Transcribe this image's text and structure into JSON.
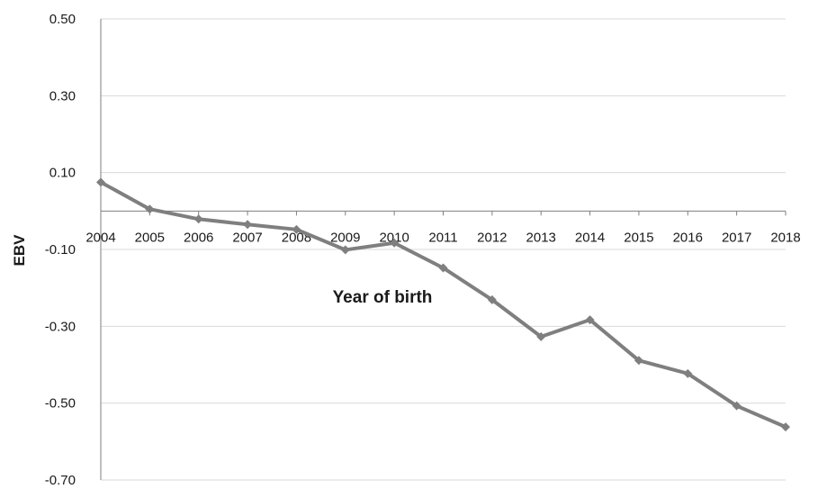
{
  "chart_data": {
    "type": "line",
    "title": "",
    "xlabel": "Year of birth",
    "ylabel": "EBV",
    "x": [
      "2004",
      "2005",
      "2006",
      "2007",
      "2008",
      "2009",
      "2010",
      "2011",
      "2012",
      "2013",
      "2014",
      "2015",
      "2016",
      "2017",
      "2018"
    ],
    "series": [
      {
        "values": [
          0.075,
          0.005,
          -0.021,
          -0.035,
          -0.048,
          -0.101,
          -0.083,
          -0.148,
          -0.231,
          -0.327,
          -0.283,
          -0.389,
          -0.423,
          -0.507,
          -0.562
        ]
      }
    ],
    "ylim": [
      -0.7,
      0.5
    ],
    "yticks": [
      "0.50",
      "0.30",
      "0.10",
      "-0.10",
      "-0.30",
      "-0.50",
      "-0.70"
    ],
    "grid": true,
    "legend": "none",
    "colors": {
      "series": "#7f7f7f",
      "grid": "#d9d9d9",
      "axis": "#7f7f7f"
    }
  }
}
